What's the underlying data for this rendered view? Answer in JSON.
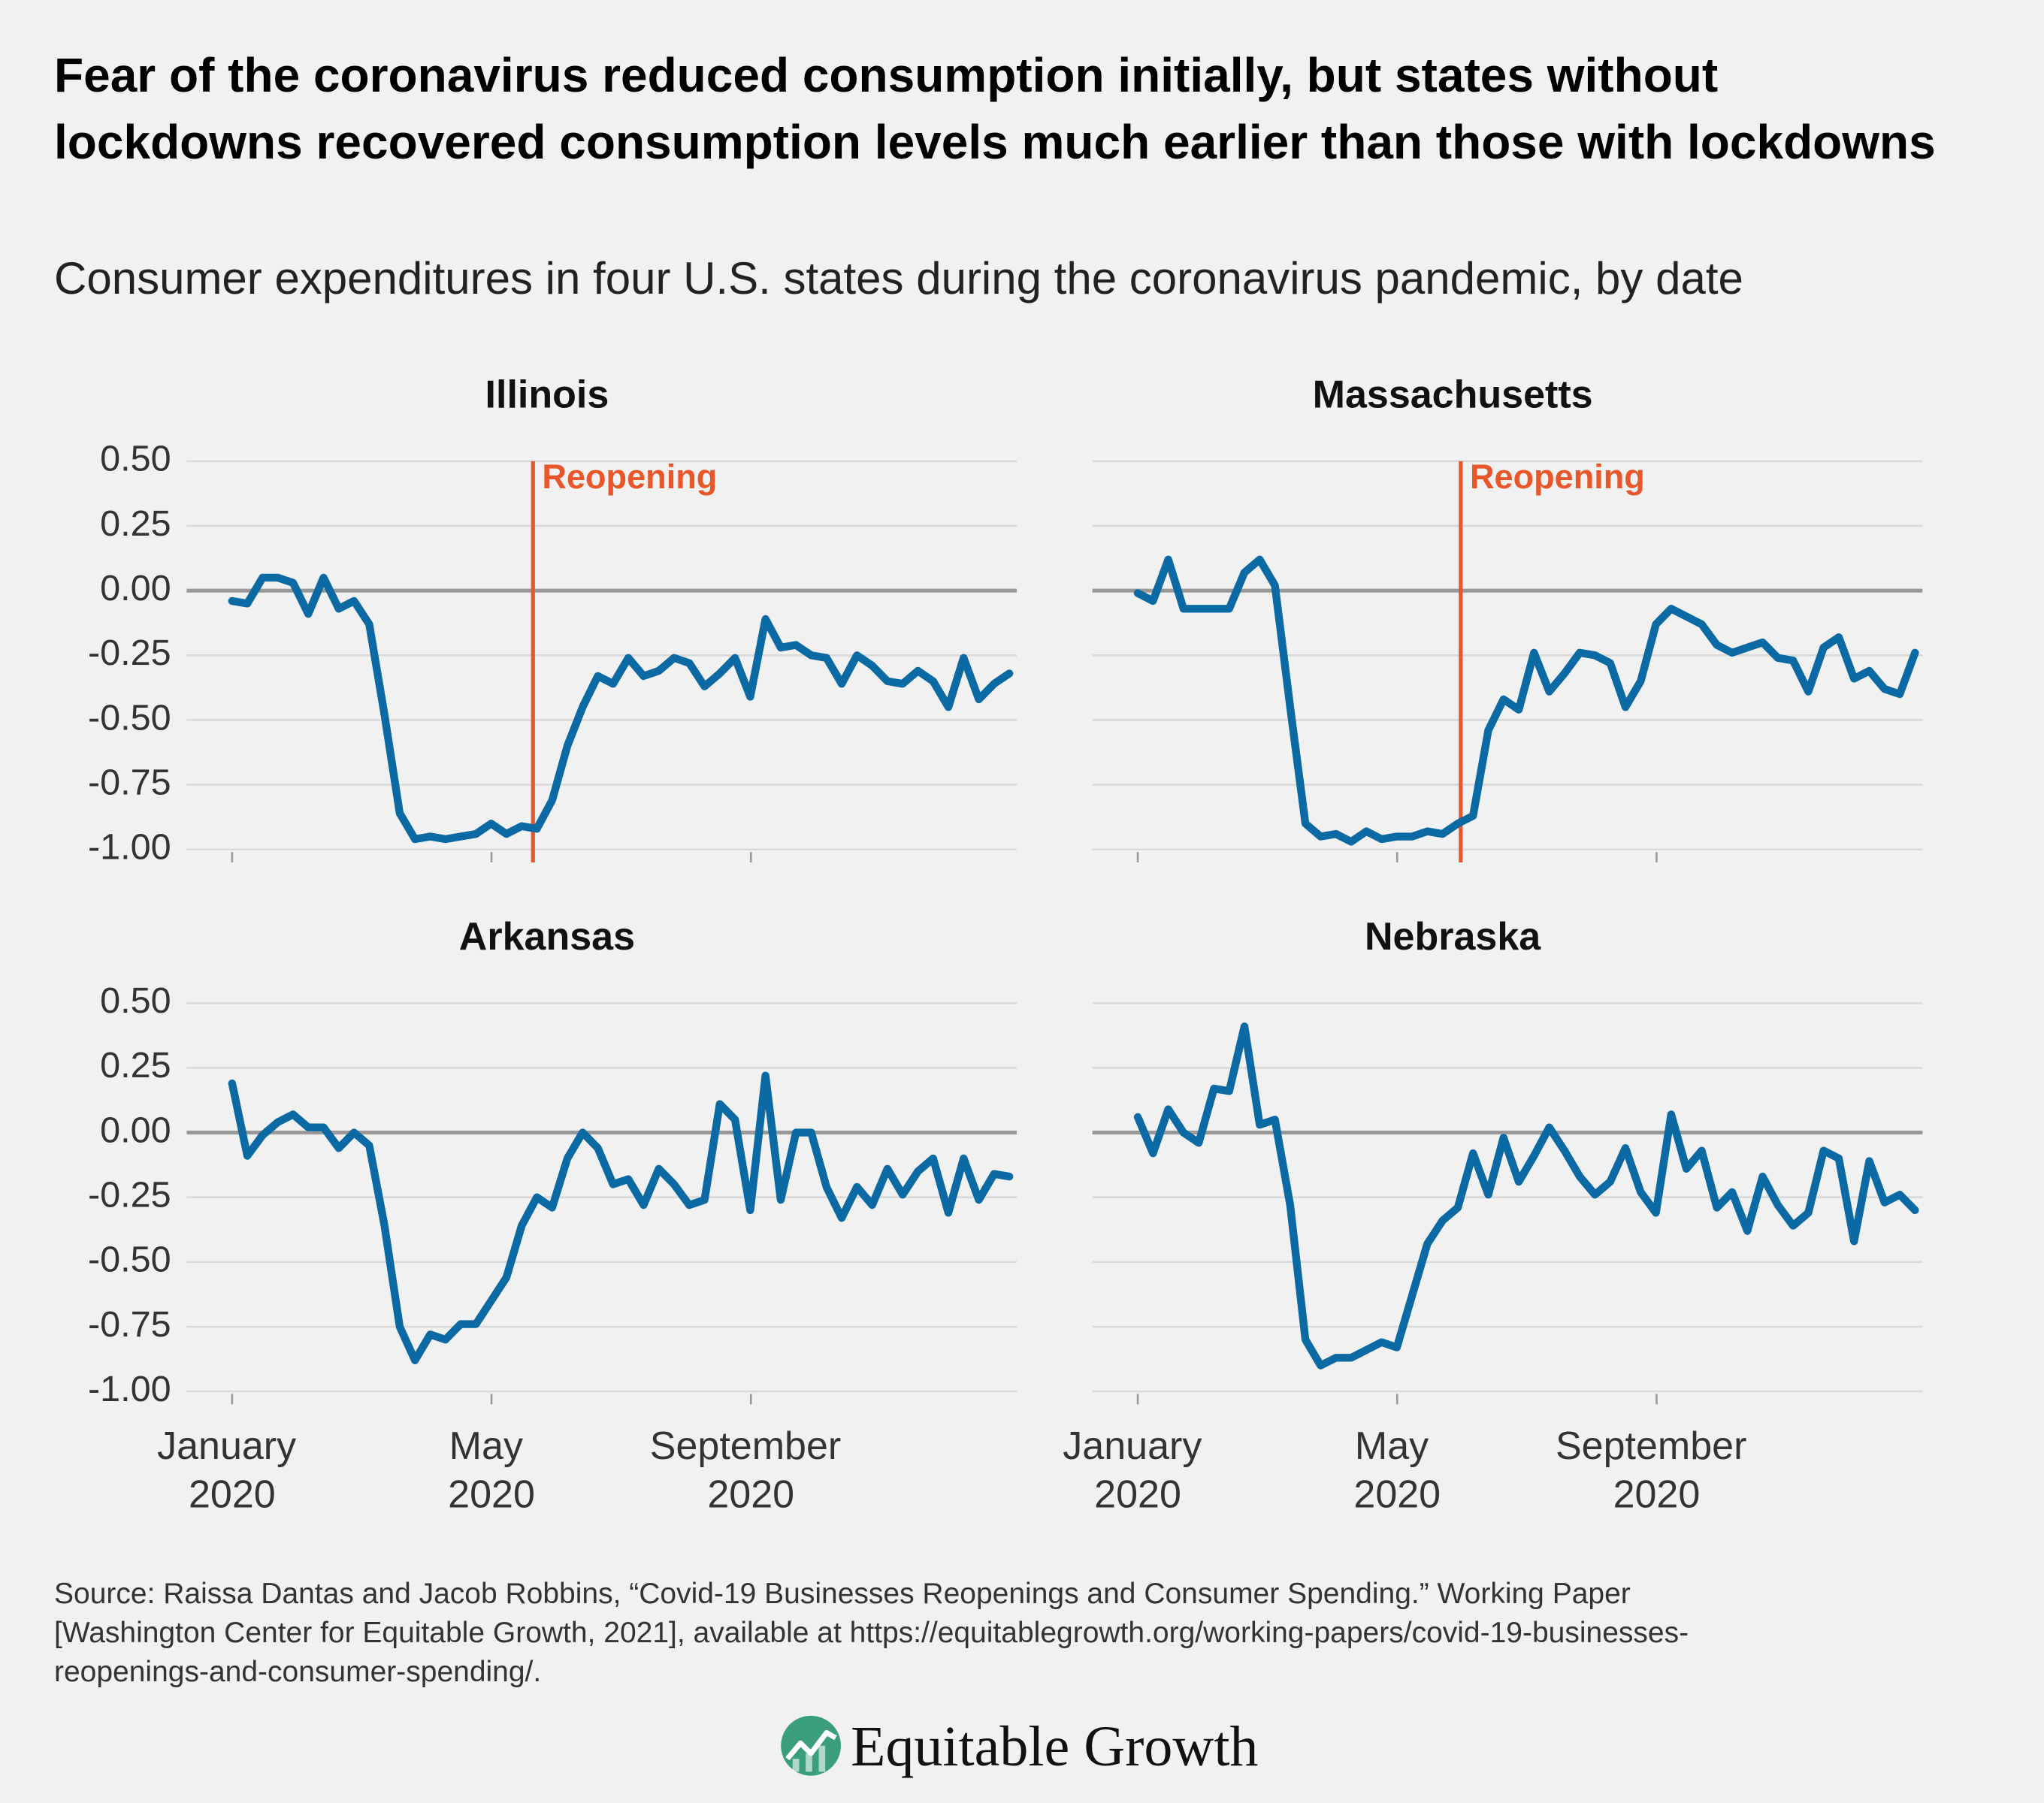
{
  "title": "Fear of the coronavirus reduced consumption initially, but states without lockdowns recovered consumption levels much earlier than those with lockdowns",
  "subtitle": "Consumer expenditures in four U.S. states during the coronavirus pandemic, by date",
  "source": "Source: Raissa Dantas and Jacob Robbins, “Covid-19 Businesses Reopenings and Consumer Spending.” Working Paper [Washington Center for Equitable Growth, 2021], available at https://equitablegrowth.org/working-papers/covid-19-businesses-reopenings-and-consumer-spending/.",
  "logo": "Equitable Growth",
  "chart_data": [
    {
      "type": "line",
      "title": "Illinois",
      "x": [
        0,
        0.235,
        0.47,
        0.705,
        0.94,
        1.175,
        1.41,
        1.645,
        1.88,
        2.115,
        2.35,
        2.585,
        2.82,
        3.055,
        3.29,
        3.525,
        3.76,
        3.995,
        4.23,
        4.465,
        4.7,
        4.935,
        5.17,
        5.405,
        5.64,
        5.875,
        6.11,
        6.345,
        6.58,
        6.815,
        7.05,
        7.285,
        7.52,
        7.755,
        7.99,
        8.225,
        8.46,
        8.695,
        8.93,
        9.165,
        9.4,
        9.635,
        9.87,
        10.105,
        10.34,
        10.575,
        10.81,
        11.045,
        11.28,
        11.515,
        11.75,
        11.985
      ],
      "series": [
        {
          "color": "#0b69a3",
          "values": [
            -0.04,
            -0.05,
            0.05,
            0.05,
            0.03,
            -0.09,
            0.05,
            -0.07,
            -0.04,
            -0.13,
            -0.48,
            -0.86,
            -0.96,
            -0.95,
            -0.96,
            -0.95,
            -0.94,
            -0.9,
            -0.94,
            -0.91,
            -0.92,
            -0.81,
            -0.6,
            -0.45,
            -0.33,
            -0.36,
            -0.26,
            -0.33,
            -0.31,
            -0.26,
            -0.28,
            -0.37,
            -0.32,
            -0.26,
            -0.41,
            -0.11,
            -0.22,
            -0.21,
            -0.25,
            -0.26,
            -0.36,
            -0.25,
            -0.29,
            -0.35,
            -0.36,
            -0.31,
            -0.35,
            -0.45,
            -0.26,
            -0.42,
            -0.36,
            -0.32
          ]
        }
      ],
      "xlim": [
        -0.7,
        12.1
      ],
      "xticks": [
        {
          "value": 0,
          "label": "January 2020"
        },
        {
          "value": 4,
          "label": "May 2020"
        },
        {
          "value": 8,
          "label": "September 2020"
        }
      ],
      "ylim": [
        -1.05,
        0.5
      ],
      "yticks": [
        {
          "value": 0.5,
          "label": "0.50"
        },
        0.25,
        {
          "value": 0,
          "label": "0.00"
        },
        -0.25,
        {
          "value": -0.5,
          "label": "-0.50"
        },
        -0.75,
        {
          "value": -1,
          "label": "-1.00"
        }
      ],
      "grid": true,
      "annotations": [
        {
          "x": 4.64,
          "label": "Reopening",
          "color": "#e8562a"
        }
      ]
    },
    {
      "type": "line",
      "title": "Massachusetts",
      "x": [
        0,
        0.235,
        0.47,
        0.705,
        0.94,
        1.175,
        1.41,
        1.645,
        1.88,
        2.115,
        2.35,
        2.585,
        2.82,
        3.055,
        3.29,
        3.525,
        3.76,
        3.995,
        4.23,
        4.465,
        4.7,
        4.935,
        5.17,
        5.405,
        5.64,
        5.875,
        6.11,
        6.345,
        6.58,
        6.815,
        7.05,
        7.285,
        7.52,
        7.755,
        7.99,
        8.225,
        8.46,
        8.695,
        8.93,
        9.165,
        9.4,
        9.635,
        9.87,
        10.105,
        10.34,
        10.575,
        10.81,
        11.045,
        11.28,
        11.515,
        11.75,
        11.985
      ],
      "series": [
        {
          "color": "#0b69a3",
          "values": [
            -0.01,
            -0.04,
            0.12,
            -0.07,
            -0.07,
            -0.07,
            -0.07,
            0.07,
            0.12,
            0.02,
            -0.45,
            -0.9,
            -0.95,
            -0.94,
            -0.97,
            -0.93,
            -0.96,
            -0.95,
            -0.95,
            -0.93,
            -0.94,
            -0.9,
            -0.87,
            -0.54,
            -0.42,
            -0.46,
            -0.24,
            -0.39,
            -0.32,
            -0.24,
            -0.25,
            -0.28,
            -0.45,
            -0.35,
            -0.13,
            -0.07,
            -0.1,
            -0.13,
            -0.21,
            -0.24,
            -0.22,
            -0.2,
            -0.26,
            -0.27,
            -0.39,
            -0.22,
            -0.18,
            -0.34,
            -0.31,
            -0.38,
            -0.4,
            -0.24
          ]
        }
      ],
      "xlim": [
        -0.7,
        12.1
      ],
      "xticks": [
        {
          "value": 0,
          "label": "January 2020"
        },
        {
          "value": 4,
          "label": "May 2020"
        },
        {
          "value": 8,
          "label": "September 2020"
        }
      ],
      "ylim": [
        -1.05,
        0.5
      ],
      "yticks": [
        {
          "value": 0.5,
          "label": "0.50"
        },
        0.25,
        {
          "value": 0,
          "label": "0.00"
        },
        -0.25,
        {
          "value": -0.5,
          "label": "-0.50"
        },
        -0.75,
        {
          "value": -1,
          "label": "-1.00"
        }
      ],
      "grid": true,
      "annotations": [
        {
          "x": 4.98,
          "label": "Reopening",
          "color": "#e8562a"
        }
      ]
    },
    {
      "type": "line",
      "title": "Arkansas",
      "x": [
        0,
        0.235,
        0.47,
        0.705,
        0.94,
        1.175,
        1.41,
        1.645,
        1.88,
        2.115,
        2.35,
        2.585,
        2.82,
        3.055,
        3.29,
        3.525,
        3.76,
        3.995,
        4.23,
        4.465,
        4.7,
        4.935,
        5.17,
        5.405,
        5.64,
        5.875,
        6.11,
        6.345,
        6.58,
        6.815,
        7.05,
        7.285,
        7.52,
        7.755,
        7.99,
        8.225,
        8.46,
        8.695,
        8.93,
        9.165,
        9.4,
        9.635,
        9.87,
        10.105,
        10.34,
        10.575,
        10.81,
        11.045,
        11.28,
        11.515,
        11.75,
        11.985
      ],
      "series": [
        {
          "color": "#0b69a3",
          "values": [
            0.19,
            -0.09,
            -0.01,
            0.04,
            0.07,
            0.02,
            0.02,
            -0.06,
            0.0,
            -0.05,
            -0.36,
            -0.75,
            -0.88,
            -0.78,
            -0.8,
            -0.74,
            -0.74,
            -0.65,
            -0.56,
            -0.36,
            -0.25,
            -0.29,
            -0.1,
            0.0,
            -0.06,
            -0.2,
            -0.18,
            -0.28,
            -0.14,
            -0.2,
            -0.28,
            -0.26,
            0.11,
            0.05,
            -0.3,
            0.22,
            -0.26,
            0.0,
            0.0,
            -0.21,
            -0.33,
            -0.21,
            -0.28,
            -0.14,
            -0.24,
            -0.15,
            -0.1,
            -0.31,
            -0.1,
            -0.26,
            -0.16,
            -0.17
          ]
        }
      ],
      "xlim": [
        -0.7,
        12.1
      ],
      "xticks": [
        {
          "value": 0,
          "label": "January 2020"
        },
        {
          "value": 4,
          "label": "May 2020"
        },
        {
          "value": 8,
          "label": "September 2020"
        }
      ],
      "ylim": [
        -1.05,
        0.5
      ],
      "yticks": [
        {
          "value": 0.5,
          "label": "0.50"
        },
        0.25,
        {
          "value": 0,
          "label": "0.00"
        },
        -0.25,
        {
          "value": -0.5,
          "label": "-0.50"
        },
        -0.75,
        {
          "value": -1,
          "label": "-1.00"
        }
      ],
      "grid": true
    },
    {
      "type": "line",
      "title": "Nebraska",
      "x": [
        0,
        0.235,
        0.47,
        0.705,
        0.94,
        1.175,
        1.41,
        1.645,
        1.88,
        2.115,
        2.35,
        2.585,
        2.82,
        3.055,
        3.29,
        3.525,
        3.76,
        3.995,
        4.23,
        4.465,
        4.7,
        4.935,
        5.17,
        5.405,
        5.64,
        5.875,
        6.11,
        6.345,
        6.58,
        6.815,
        7.05,
        7.285,
        7.52,
        7.755,
        7.99,
        8.225,
        8.46,
        8.695,
        8.93,
        9.165,
        9.4,
        9.635,
        9.87,
        10.105,
        10.34,
        10.575,
        10.81,
        11.045,
        11.28,
        11.515,
        11.75,
        11.985
      ],
      "series": [
        {
          "color": "#0b69a3",
          "values": [
            0.06,
            -0.08,
            0.09,
            0.0,
            -0.04,
            0.17,
            0.16,
            0.41,
            0.03,
            0.05,
            -0.28,
            -0.8,
            -0.9,
            -0.87,
            -0.87,
            -0.84,
            -0.81,
            -0.83,
            -0.63,
            -0.43,
            -0.34,
            -0.29,
            -0.08,
            -0.24,
            -0.02,
            -0.19,
            -0.09,
            0.02,
            -0.07,
            -0.17,
            -0.24,
            -0.19,
            -0.06,
            -0.23,
            -0.31,
            0.07,
            -0.14,
            -0.07,
            -0.29,
            -0.23,
            -0.38,
            -0.17,
            -0.28,
            -0.36,
            -0.31,
            -0.07,
            -0.1,
            -0.42,
            -0.11,
            -0.27,
            -0.24,
            -0.3
          ]
        }
      ],
      "xlim": [
        -0.7,
        12.1
      ],
      "xticks": [
        {
          "value": 0,
          "label": "January 2020"
        },
        {
          "value": 4,
          "label": "May 2020"
        },
        {
          "value": 8,
          "label": "September 2020"
        }
      ],
      "ylim": [
        -1.05,
        0.5
      ],
      "yticks": [
        {
          "value": 0.5,
          "label": "0.50"
        },
        0.25,
        {
          "value": 0,
          "label": "0.00"
        },
        -0.25,
        {
          "value": -0.5,
          "label": "-0.50"
        },
        -0.75,
        {
          "value": -1,
          "label": "-1.00"
        }
      ],
      "grid": true
    }
  ]
}
